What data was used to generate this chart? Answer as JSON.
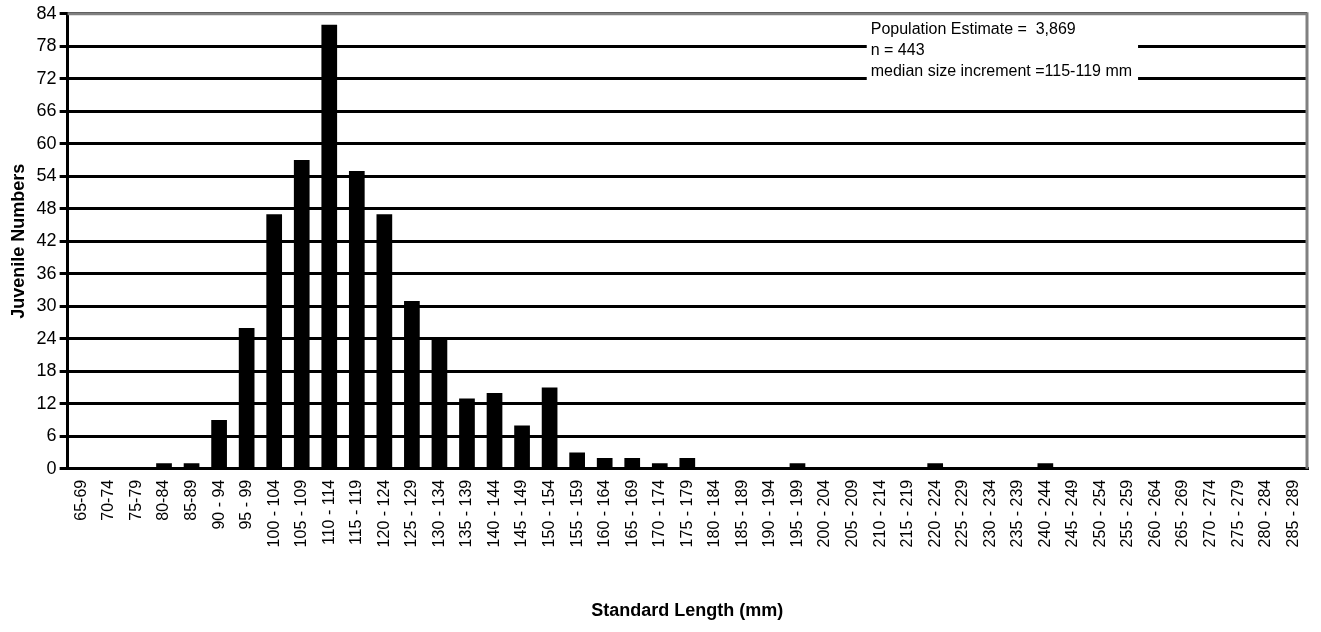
{
  "chart_data": {
    "type": "bar",
    "xlabel": "Standard Length (mm)",
    "ylabel": "Juvenile Numbers",
    "categories": [
      "65-69",
      "70-74",
      "75-79",
      "80-84",
      "85-89",
      "90 - 94",
      "95 - 99",
      "100 - 104",
      "105 - 109",
      "110 - 114",
      "115 - 119",
      "120 - 124",
      "125 - 129",
      "130 - 134",
      "135 - 139",
      "140 - 144",
      "145 - 149",
      "150 - 154",
      "155 - 159",
      "160 - 164",
      "165 - 169",
      "170 - 174",
      "175 - 179",
      "180 - 184",
      "185 - 189",
      "190 - 194",
      "195 - 199",
      "200 - 204",
      "205 - 209",
      "210 - 214",
      "215 - 219",
      "220 - 224",
      "225 - 229",
      "230 - 234",
      "235 - 239",
      "240 - 244",
      "245 - 249",
      "250 - 254",
      "255 - 259",
      "260 - 264",
      "265 - 269",
      "270 - 274",
      "275 - 279",
      "280 - 284",
      "285 - 289"
    ],
    "values": [
      0,
      0,
      0,
      1,
      1,
      9,
      26,
      47,
      57,
      82,
      55,
      47,
      31,
      24,
      13,
      14,
      8,
      15,
      3,
      2,
      2,
      1,
      2,
      0,
      0,
      0,
      1,
      0,
      0,
      0,
      0,
      1,
      0,
      0,
      0,
      1,
      0,
      0,
      0,
      0,
      0,
      0,
      0,
      0,
      0
    ],
    "color": "#000000",
    "ylim": [
      0,
      84
    ],
    "yticks": [
      0,
      6,
      12,
      18,
      24,
      30,
      36,
      42,
      48,
      54,
      60,
      66,
      72,
      78,
      84
    ],
    "grid": "y",
    "legend": false,
    "annotations": [
      "Population Estimate =  3,869",
      "n = 443",
      "median size increment =115-119 mm"
    ]
  }
}
